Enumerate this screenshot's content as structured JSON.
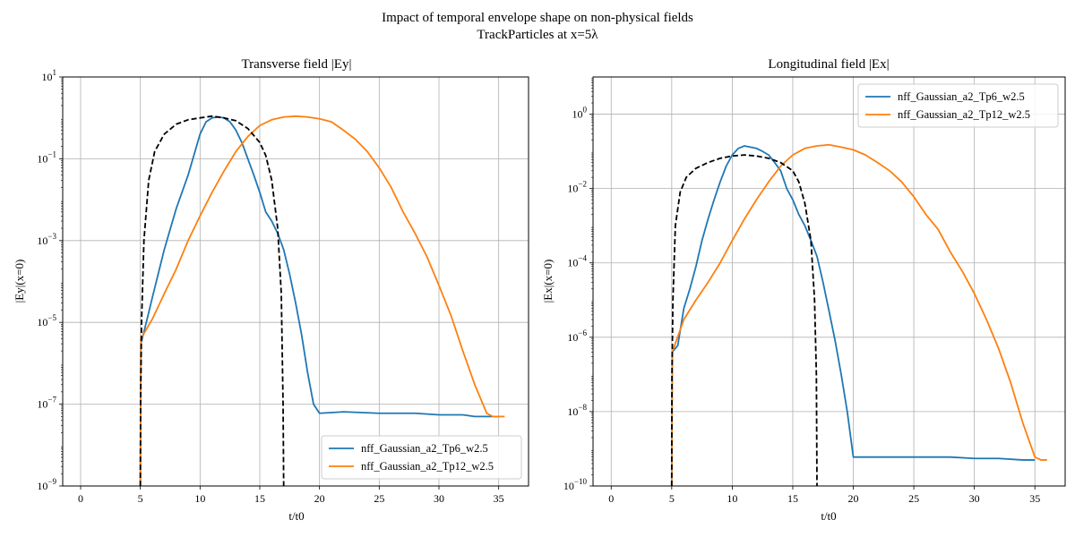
{
  "figure": {
    "suptitle_line1": "Impact of temporal envelope shape on non-physical fields",
    "suptitle_line2": "TrackParticles at x=5λ"
  },
  "colors": {
    "series_a": "#1f77b4",
    "series_b": "#ff7f0e",
    "envelope": "#000000",
    "grid": "#b0b0b0"
  },
  "chart_data": [
    {
      "type": "line",
      "title": "Transverse field |Ey|",
      "xlabel": "t/t0",
      "ylabel": "|Ey|(x=0)",
      "yscale": "log",
      "xlim": [
        -1.5,
        37.5
      ],
      "ylim": [
        1e-09,
        10
      ],
      "grid": true,
      "legend_position": "lower-right",
      "x_ticks": [
        "0",
        "5",
        "10",
        "15",
        "20",
        "25",
        "30",
        "35"
      ],
      "y_ticks": [
        {
          "base": "10",
          "exp": "1"
        },
        {
          "base": "10",
          "exp": "−1"
        },
        {
          "base": "10",
          "exp": "−3"
        },
        {
          "base": "10",
          "exp": "−5"
        },
        {
          "base": "10",
          "exp": "−7"
        },
        {
          "base": "10",
          "exp": "−9"
        }
      ],
      "series": [
        {
          "name": "nff_Gaussian_a2_Tp6_w2.5",
          "color": "#1f77b4",
          "style": "solid",
          "points": [
            [
              5,
              1e-09
            ],
            [
              5.05,
              3e-06
            ],
            [
              5.5,
              1e-05
            ],
            [
              6,
              4e-05
            ],
            [
              7,
              0.0006
            ],
            [
              8,
              0.006
            ],
            [
              9,
              0.04
            ],
            [
              10,
              0.4
            ],
            [
              10.5,
              0.8
            ],
            [
              11,
              1.0
            ],
            [
              11.5,
              1.05
            ],
            [
              12,
              1.0
            ],
            [
              12.5,
              0.8
            ],
            [
              13,
              0.5
            ],
            [
              13.5,
              0.25
            ],
            [
              14,
              0.1
            ],
            [
              14.5,
              0.04
            ],
            [
              15,
              0.015
            ],
            [
              15.5,
              0.005
            ],
            [
              16,
              0.003
            ],
            [
              16.5,
              0.0015
            ],
            [
              17,
              0.0006
            ],
            [
              17.5,
              0.00015
            ],
            [
              18,
              3e-05
            ],
            [
              18.5,
              5e-06
            ],
            [
              19,
              6e-07
            ],
            [
              19.5,
              1e-07
            ],
            [
              20,
              6e-08
            ],
            [
              22,
              6.5e-08
            ],
            [
              25,
              6e-08
            ],
            [
              28,
              6e-08
            ],
            [
              30,
              5.5e-08
            ],
            [
              32,
              5.5e-08
            ],
            [
              33,
              5e-08
            ],
            [
              34,
              5e-08
            ],
            [
              35,
              5e-08
            ]
          ]
        },
        {
          "name": "nff_Gaussian_a2_Tp12_w2.5",
          "color": "#ff7f0e",
          "style": "solid",
          "points": [
            [
              5,
              1e-09
            ],
            [
              5.05,
              4e-06
            ],
            [
              6,
              1.2e-05
            ],
            [
              7,
              5e-05
            ],
            [
              8,
              0.0002
            ],
            [
              9,
              0.001
            ],
            [
              10,
              0.004
            ],
            [
              11,
              0.015
            ],
            [
              12,
              0.05
            ],
            [
              13,
              0.15
            ],
            [
              14,
              0.35
            ],
            [
              15,
              0.65
            ],
            [
              16,
              0.9
            ],
            [
              17,
              1.05
            ],
            [
              18,
              1.1
            ],
            [
              19,
              1.05
            ],
            [
              20,
              0.95
            ],
            [
              21,
              0.8
            ],
            [
              22,
              0.5
            ],
            [
              23,
              0.3
            ],
            [
              24,
              0.15
            ],
            [
              25,
              0.06
            ],
            [
              26,
              0.02
            ],
            [
              27,
              0.005
            ],
            [
              28,
              0.0015
            ],
            [
              29,
              0.0004
            ],
            [
              30,
              8e-05
            ],
            [
              31,
              1.5e-05
            ],
            [
              32,
              2e-06
            ],
            [
              33,
              3e-07
            ],
            [
              34,
              6e-08
            ],
            [
              34.5,
              5e-08
            ],
            [
              35.5,
              5e-08
            ]
          ]
        },
        {
          "name": "",
          "color": "#000000",
          "style": "dashed",
          "points": [
            [
              5,
              1e-09
            ],
            [
              5.02,
              1e-07
            ],
            [
              5.1,
              1e-05
            ],
            [
              5.3,
              0.001
            ],
            [
              5.7,
              0.03
            ],
            [
              6.2,
              0.15
            ],
            [
              7,
              0.4
            ],
            [
              8,
              0.7
            ],
            [
              9,
              0.9
            ],
            [
              10,
              1.0
            ],
            [
              11,
              1.1
            ],
            [
              12,
              1.0
            ],
            [
              13,
              0.85
            ],
            [
              14,
              0.55
            ],
            [
              15,
              0.25
            ],
            [
              15.5,
              0.12
            ],
            [
              16,
              0.03
            ],
            [
              16.5,
              0.002
            ],
            [
              16.8,
              5e-05
            ],
            [
              16.95,
              1e-07
            ],
            [
              17,
              1e-09
            ]
          ]
        }
      ]
    },
    {
      "type": "line",
      "title": "Longitudinal field |Ex|",
      "xlabel": "t/t0",
      "ylabel": "|Ex|(x=0)",
      "yscale": "log",
      "xlim": [
        -1.5,
        37.5
      ],
      "ylim": [
        1e-10,
        10
      ],
      "grid": true,
      "legend_position": "upper-right",
      "x_ticks": [
        "0",
        "5",
        "10",
        "15",
        "20",
        "25",
        "30",
        "35"
      ],
      "y_ticks": [
        {
          "base": "10",
          "exp": "0"
        },
        {
          "base": "10",
          "exp": "−2"
        },
        {
          "base": "10",
          "exp": "−4"
        },
        {
          "base": "10",
          "exp": "−6"
        },
        {
          "base": "10",
          "exp": "−8"
        },
        {
          "base": "10",
          "exp": "−10"
        }
      ],
      "series": [
        {
          "name": "nff_Gaussian_a2_Tp6_w2.5",
          "color": "#1f77b4",
          "style": "solid",
          "points": [
            [
              5,
              1e-10
            ],
            [
              5.05,
              4e-07
            ],
            [
              5.5,
              6e-07
            ],
            [
              6,
              6e-06
            ],
            [
              6.5,
              2e-05
            ],
            [
              7,
              8e-05
            ],
            [
              7.5,
              0.0004
            ],
            [
              8,
              0.0015
            ],
            [
              8.5,
              0.005
            ],
            [
              9,
              0.015
            ],
            [
              9.5,
              0.04
            ],
            [
              10,
              0.08
            ],
            [
              10.5,
              0.12
            ],
            [
              11,
              0.14
            ],
            [
              11.5,
              0.13
            ],
            [
              12,
              0.12
            ],
            [
              12.5,
              0.1
            ],
            [
              13,
              0.08
            ],
            [
              13.5,
              0.05
            ],
            [
              14,
              0.03
            ],
            [
              14.5,
              0.01
            ],
            [
              15,
              0.005
            ],
            [
              15.5,
              0.002
            ],
            [
              16,
              0.001
            ],
            [
              16.5,
              0.0004
            ],
            [
              17,
              0.00015
            ],
            [
              17.5,
              3e-05
            ],
            [
              18,
              5e-06
            ],
            [
              18.5,
              8e-07
            ],
            [
              19,
              1e-07
            ],
            [
              19.5,
              1e-08
            ],
            [
              20,
              6e-10
            ],
            [
              22,
              6e-10
            ],
            [
              25,
              6e-10
            ],
            [
              28,
              6e-10
            ],
            [
              30,
              5.5e-10
            ],
            [
              32,
              5.5e-10
            ],
            [
              34,
              5e-10
            ],
            [
              35,
              5e-10
            ]
          ]
        },
        {
          "name": "nff_Gaussian_a2_Tp12_w2.5",
          "color": "#ff7f0e",
          "style": "solid",
          "points": [
            [
              5,
              1e-10
            ],
            [
              5.05,
              4e-07
            ],
            [
              6,
              3e-06
            ],
            [
              7,
              1e-05
            ],
            [
              8,
              3e-05
            ],
            [
              9,
              0.0001
            ],
            [
              10,
              0.0004
            ],
            [
              11,
              0.0015
            ],
            [
              12,
              0.005
            ],
            [
              13,
              0.015
            ],
            [
              14,
              0.04
            ],
            [
              15,
              0.08
            ],
            [
              16,
              0.12
            ],
            [
              17,
              0.14
            ],
            [
              18,
              0.15
            ],
            [
              19,
              0.13
            ],
            [
              20,
              0.11
            ],
            [
              21,
              0.08
            ],
            [
              22,
              0.05
            ],
            [
              23,
              0.03
            ],
            [
              24,
              0.015
            ],
            [
              25,
              0.006
            ],
            [
              26,
              0.002
            ],
            [
              27,
              0.0008
            ],
            [
              28,
              0.0002
            ],
            [
              29,
              6e-05
            ],
            [
              30,
              1.5e-05
            ],
            [
              31,
              3e-06
            ],
            [
              32,
              5e-07
            ],
            [
              33,
              6e-08
            ],
            [
              34,
              5e-09
            ],
            [
              35,
              6e-10
            ],
            [
              35.5,
              5e-10
            ],
            [
              36,
              5e-10
            ]
          ]
        },
        {
          "name": "",
          "color": "#000000",
          "style": "dashed",
          "points": [
            [
              5,
              1e-10
            ],
            [
              5.02,
              1e-07
            ],
            [
              5.1,
              1e-05
            ],
            [
              5.3,
              0.001
            ],
            [
              5.7,
              0.008
            ],
            [
              6.2,
              0.02
            ],
            [
              7,
              0.035
            ],
            [
              8,
              0.05
            ],
            [
              9,
              0.065
            ],
            [
              10,
              0.075
            ],
            [
              11,
              0.08
            ],
            [
              12,
              0.075
            ],
            [
              13,
              0.065
            ],
            [
              14,
              0.05
            ],
            [
              15,
              0.03
            ],
            [
              15.5,
              0.015
            ],
            [
              16,
              0.004
            ],
            [
              16.5,
              0.0004
            ],
            [
              16.8,
              1e-05
            ],
            [
              16.95,
              1e-07
            ],
            [
              17,
              1e-10
            ]
          ]
        }
      ]
    }
  ]
}
